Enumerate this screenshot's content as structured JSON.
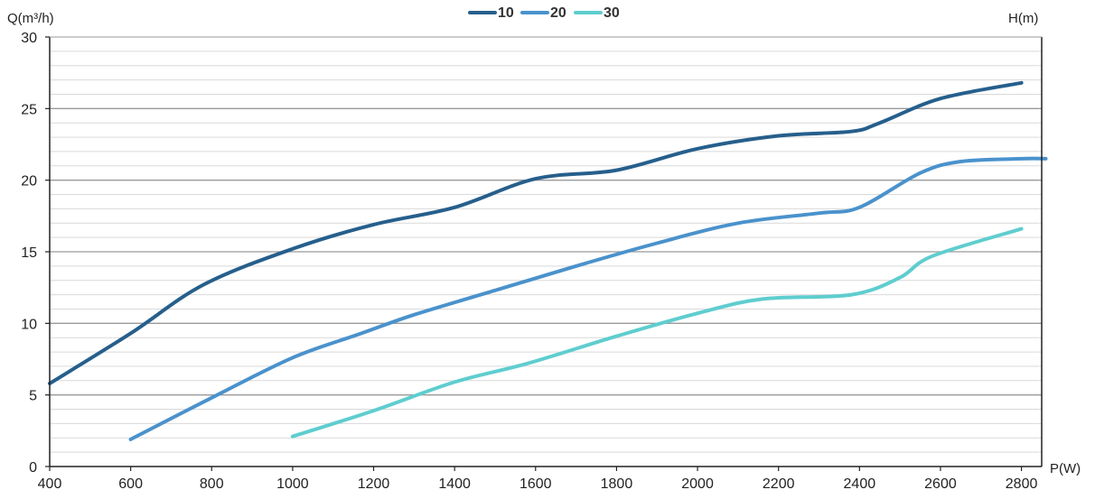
{
  "chart_data": {
    "type": "line",
    "title": "",
    "xlabel": "P(W)",
    "ylabel": "Q(m³/h)",
    "right_label": "H(m)",
    "xlim": [
      400,
      2850
    ],
    "ylim": [
      0,
      30
    ],
    "x_ticks": [
      400,
      600,
      800,
      1000,
      1200,
      1400,
      1600,
      1800,
      2000,
      2200,
      2400,
      2600,
      2800
    ],
    "y_ticks": [
      0,
      5,
      10,
      15,
      20,
      25,
      30
    ],
    "y_minor_step": 1,
    "grid": true,
    "legend_position": "top-center",
    "series": [
      {
        "name": "10",
        "color": "#265f8c",
        "points": [
          [
            400,
            5.8
          ],
          [
            600,
            9.3
          ],
          [
            780,
            12.7
          ],
          [
            1000,
            15.2
          ],
          [
            1200,
            16.9
          ],
          [
            1400,
            18.1
          ],
          [
            1600,
            20.1
          ],
          [
            1800,
            20.7
          ],
          [
            2000,
            22.2
          ],
          [
            2200,
            23.1
          ],
          [
            2380,
            23.4
          ],
          [
            2450,
            24.0
          ],
          [
            2600,
            25.7
          ],
          [
            2800,
            26.8
          ]
        ]
      },
      {
        "name": "20",
        "color": "#4a92cc",
        "points": [
          [
            600,
            1.9
          ],
          [
            800,
            4.8
          ],
          [
            1000,
            7.6
          ],
          [
            1170,
            9.3
          ],
          [
            1300,
            10.6
          ],
          [
            1500,
            12.3
          ],
          [
            1700,
            14.0
          ],
          [
            1900,
            15.6
          ],
          [
            2100,
            17.0
          ],
          [
            2300,
            17.7
          ],
          [
            2400,
            18.1
          ],
          [
            2550,
            20.5
          ],
          [
            2650,
            21.3
          ],
          [
            2800,
            21.5
          ],
          [
            2860,
            21.5
          ]
        ]
      },
      {
        "name": "30",
        "color": "#5fcdcf",
        "points": [
          [
            1000,
            2.1
          ],
          [
            1200,
            3.9
          ],
          [
            1400,
            5.9
          ],
          [
            1580,
            7.2
          ],
          [
            1800,
            9.1
          ],
          [
            2000,
            10.7
          ],
          [
            2160,
            11.7
          ],
          [
            2380,
            12.0
          ],
          [
            2500,
            13.2
          ],
          [
            2580,
            14.7
          ],
          [
            2800,
            16.6
          ]
        ]
      }
    ]
  }
}
